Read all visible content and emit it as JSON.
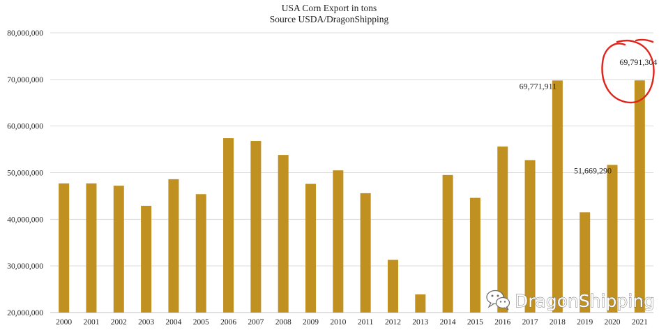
{
  "chart_data": {
    "type": "bar",
    "title": "USA Corn Export in tons",
    "subtitle": "Source USDA/DragonShipping",
    "categories": [
      "2000",
      "2001",
      "2002",
      "2003",
      "2004",
      "2005",
      "2006",
      "2007",
      "2008",
      "2009",
      "2010",
      "2011",
      "2012",
      "2013",
      "2014",
      "2015",
      "2016",
      "2017",
      "2018",
      "2019",
      "2020",
      "2021"
    ],
    "values": [
      47700000,
      47700000,
      47200000,
      42900000,
      48600000,
      45400000,
      57400000,
      56800000,
      53800000,
      47600000,
      50500000,
      45600000,
      31300000,
      23900000,
      49500000,
      44600000,
      55600000,
      52700000,
      69771911,
      41500000,
      51669290,
      69791304
    ],
    "ylim": [
      20000000,
      80000000
    ],
    "yticks": [
      20000000,
      30000000,
      40000000,
      50000000,
      60000000,
      70000000,
      80000000
    ],
    "ytick_labels": [
      "20,000,000",
      "30,000,000",
      "40,000,000",
      "50,000,000",
      "60,000,000",
      "70,000,000",
      "80,000,000"
    ],
    "data_labels": [
      {
        "category": "2018",
        "text": "69,771,911"
      },
      {
        "category": "2020",
        "text": "51,669,290"
      },
      {
        "category": "2021",
        "text": "69,791,304"
      }
    ],
    "bar_color": "#c09120",
    "grid": true,
    "legend": "none",
    "annotation": {
      "type": "hand-drawn circle",
      "target": "2021",
      "color": "#e02020"
    }
  },
  "watermark": {
    "text": "DragonShipping",
    "icon": "wechat-icon"
  }
}
